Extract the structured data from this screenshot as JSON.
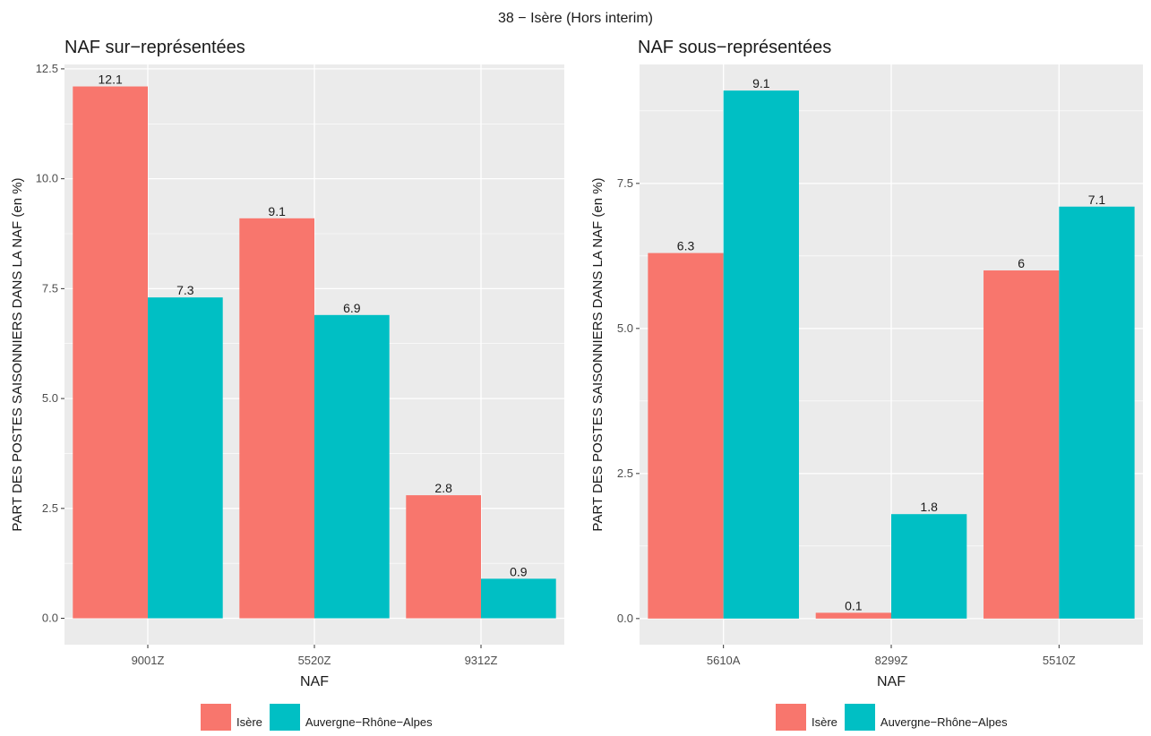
{
  "figure": {
    "title": "38 − Isère (Hors interim)"
  },
  "colors": {
    "isere": "#F8766D",
    "auvergne": "#00BFC4",
    "panel": "#EBEBEB",
    "grid": "#FFFFFF"
  },
  "legend": {
    "items": [
      "Isère",
      "Auvergne−Rhône−Alpes"
    ]
  },
  "chart_data": [
    {
      "type": "bar",
      "title": "NAF sur−représentées",
      "xlabel": "NAF",
      "ylabel": "PART DES POSTES SAISONNIERS DANS LA NAF (en %)",
      "categories": [
        "9001Z",
        "5520Z",
        "9312Z"
      ],
      "series": [
        {
          "name": "Isère",
          "values": [
            12.1,
            9.1,
            2.8
          ],
          "labels": [
            "12.1",
            "9.1",
            "2.8"
          ]
        },
        {
          "name": "Auvergne−Rhône−Alpes",
          "values": [
            7.3,
            6.9,
            0.9
          ],
          "labels": [
            "7.3",
            "6.9",
            "0.9"
          ]
        }
      ],
      "yticks": [
        "0.0",
        "2.5",
        "5.0",
        "7.5",
        "10.0",
        "12.5"
      ],
      "ylim": [
        -0.6,
        12.6
      ],
      "grid": true,
      "legend_position": "bottom"
    },
    {
      "type": "bar",
      "title": "NAF sous−représentées",
      "xlabel": "NAF",
      "ylabel": "PART DES POSTES SAISONNIERS DANS LA NAF (en %)",
      "categories": [
        "5610A",
        "8299Z",
        "5510Z"
      ],
      "series": [
        {
          "name": "Isère",
          "values": [
            6.3,
            0.1,
            6.0
          ],
          "labels": [
            "6.3",
            "0.1",
            "6"
          ]
        },
        {
          "name": "Auvergne−Rhône−Alpes",
          "values": [
            9.1,
            1.8,
            7.1
          ],
          "labels": [
            "9.1",
            "1.8",
            "7.1"
          ]
        }
      ],
      "yticks": [
        "0.0",
        "2.5",
        "5.0",
        "7.5"
      ],
      "ylim": [
        -0.45,
        9.55
      ],
      "grid": true,
      "legend_position": "bottom"
    }
  ]
}
